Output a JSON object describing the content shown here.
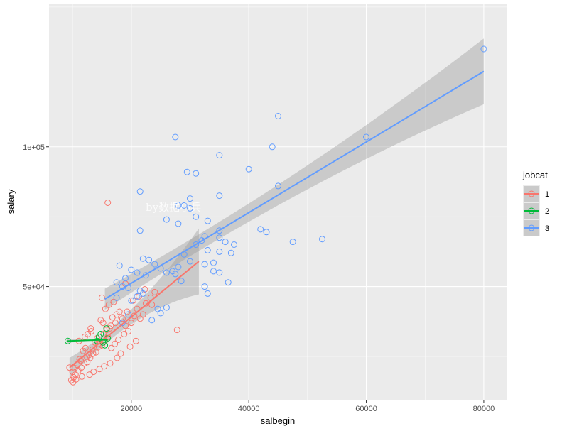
{
  "chart_data": {
    "type": "scatter",
    "title": "",
    "xlabel": "salbegin",
    "ylabel": "salary",
    "xlim": [
      6000,
      84000
    ],
    "ylim": [
      9500,
      151000
    ],
    "x_ticks": [
      20000,
      40000,
      60000,
      80000
    ],
    "x_tick_labels": [
      "20000",
      "40000",
      "60000",
      "80000"
    ],
    "y_ticks": [
      50000,
      100000
    ],
    "y_tick_labels": [
      "5e+04",
      "1e+05"
    ],
    "grid": true,
    "legend": {
      "title": "jobcat",
      "placement": "right",
      "entries": [
        "1",
        "2",
        "3"
      ]
    },
    "watermark": "by数据小兵",
    "series": [
      {
        "name": "1",
        "color": "#F8766D",
        "points": [
          [
            9800,
            16500
          ],
          [
            10200,
            17500
          ],
          [
            10500,
            18500
          ],
          [
            10000,
            19500
          ],
          [
            11000,
            20000
          ],
          [
            11500,
            21000
          ],
          [
            10800,
            22000
          ],
          [
            12000,
            22500
          ],
          [
            12500,
            23000
          ],
          [
            11200,
            24000
          ],
          [
            13000,
            24500
          ],
          [
            12800,
            25500
          ],
          [
            13500,
            26000
          ],
          [
            14000,
            26500
          ],
          [
            11800,
            27000
          ],
          [
            12200,
            28000
          ],
          [
            14500,
            28500
          ],
          [
            15000,
            29000
          ],
          [
            13800,
            30000
          ],
          [
            15500,
            30500
          ],
          [
            14200,
            31500
          ],
          [
            16000,
            32000
          ],
          [
            12600,
            33000
          ],
          [
            13200,
            34000
          ],
          [
            15800,
            34500
          ],
          [
            16500,
            36000
          ],
          [
            15200,
            37000
          ],
          [
            14800,
            38000
          ],
          [
            16800,
            39000
          ],
          [
            17500,
            40000
          ],
          [
            18000,
            41000
          ],
          [
            15600,
            42000
          ],
          [
            16200,
            43500
          ],
          [
            17000,
            44500
          ],
          [
            15000,
            46000
          ],
          [
            18500,
            38500
          ],
          [
            19000,
            36000
          ],
          [
            19500,
            34000
          ],
          [
            20000,
            37000
          ],
          [
            20500,
            39500
          ],
          [
            21000,
            42000
          ],
          [
            22000,
            40000
          ],
          [
            22500,
            44000
          ],
          [
            23500,
            43500
          ],
          [
            21500,
            38500
          ],
          [
            18800,
            33000
          ],
          [
            17800,
            31000
          ],
          [
            17200,
            29500
          ],
          [
            16600,
            28000
          ],
          [
            18200,
            26000
          ],
          [
            17600,
            24500
          ],
          [
            16400,
            22500
          ],
          [
            15400,
            21500
          ],
          [
            14600,
            20500
          ],
          [
            13600,
            19500
          ],
          [
            12900,
            18500
          ],
          [
            11600,
            17800
          ],
          [
            10600,
            16800
          ],
          [
            10100,
            15800
          ],
          [
            10400,
            20800
          ],
          [
            11400,
            23500
          ],
          [
            12400,
            25000
          ],
          [
            13400,
            27500
          ],
          [
            14400,
            29500
          ],
          [
            15300,
            33000
          ],
          [
            16300,
            35000
          ],
          [
            17300,
            37000
          ],
          [
            18300,
            39000
          ],
          [
            19300,
            41000
          ],
          [
            20300,
            45000
          ],
          [
            21300,
            46500
          ],
          [
            22300,
            49000
          ],
          [
            23300,
            46000
          ],
          [
            24000,
            48000
          ],
          [
            19000,
            51000
          ],
          [
            16000,
            80000
          ],
          [
            27800,
            34500
          ],
          [
            9500,
            21000
          ],
          [
            11100,
            30500
          ],
          [
            12100,
            32000
          ],
          [
            13100,
            35000
          ],
          [
            20800,
            30500
          ],
          [
            19800,
            28500
          ]
        ],
        "fit": {
          "x_start": 9500,
          "x_end": 31500,
          "y_start": 21000,
          "y_end": 59000
        }
      },
      {
        "name": "2",
        "color": "#00BA38",
        "points": [
          [
            9200,
            30500
          ],
          [
            14500,
            32000
          ],
          [
            15200,
            30000
          ],
          [
            15800,
            35000
          ],
          [
            14800,
            33000
          ],
          [
            15500,
            29000
          ],
          [
            16000,
            31500
          ],
          [
            14200,
            30500
          ]
        ],
        "fit": {
          "x_start": 9000,
          "x_end": 16000,
          "y_start": 30500,
          "y_end": 31000
        }
      },
      {
        "name": "3",
        "color": "#619CFF",
        "points": [
          [
            80000,
            135000
          ],
          [
            60000,
            103500
          ],
          [
            45000,
            111000
          ],
          [
            44000,
            100000
          ],
          [
            27500,
            103500
          ],
          [
            40000,
            92000
          ],
          [
            35000,
            97000
          ],
          [
            29500,
            91000
          ],
          [
            31000,
            90500
          ],
          [
            45000,
            86000
          ],
          [
            35000,
            82500
          ],
          [
            30000,
            81500
          ],
          [
            21500,
            84000
          ],
          [
            28000,
            79000
          ],
          [
            29000,
            79000
          ],
          [
            30000,
            78000
          ],
          [
            31000,
            75000
          ],
          [
            26000,
            74000
          ],
          [
            33000,
            73500
          ],
          [
            28000,
            72500
          ],
          [
            21500,
            70000
          ],
          [
            35000,
            70000
          ],
          [
            42000,
            70500
          ],
          [
            43000,
            69500
          ],
          [
            32500,
            68000
          ],
          [
            35000,
            67500
          ],
          [
            32000,
            66500
          ],
          [
            36000,
            66000
          ],
          [
            47500,
            66000
          ],
          [
            52500,
            67000
          ],
          [
            31000,
            65000
          ],
          [
            37500,
            65000
          ],
          [
            33000,
            63000
          ],
          [
            35000,
            62500
          ],
          [
            37000,
            62000
          ],
          [
            29000,
            61500
          ],
          [
            30000,
            59000
          ],
          [
            34000,
            58500
          ],
          [
            32500,
            58000
          ],
          [
            28000,
            57000
          ],
          [
            25000,
            56500
          ],
          [
            27000,
            55500
          ],
          [
            22000,
            60000
          ],
          [
            23000,
            59500
          ],
          [
            24000,
            58000
          ],
          [
            18000,
            57500
          ],
          [
            20000,
            56000
          ],
          [
            21000,
            55000
          ],
          [
            22500,
            54000
          ],
          [
            19000,
            53000
          ],
          [
            17500,
            51500
          ],
          [
            18500,
            50000
          ],
          [
            34000,
            55500
          ],
          [
            35000,
            55000
          ],
          [
            26000,
            55000
          ],
          [
            27500,
            54500
          ],
          [
            28500,
            52000
          ],
          [
            19500,
            49500
          ],
          [
            21500,
            48500
          ],
          [
            22000,
            47500
          ],
          [
            21000,
            46500
          ],
          [
            17500,
            46000
          ],
          [
            32500,
            50000
          ],
          [
            33000,
            47500
          ],
          [
            36500,
            51500
          ],
          [
            24500,
            42000
          ],
          [
            26000,
            42500
          ],
          [
            25000,
            40500
          ],
          [
            23500,
            38000
          ],
          [
            19500,
            40000
          ],
          [
            18500,
            37000
          ],
          [
            20000,
            45000
          ]
        ],
        "fit": {
          "x_start": 15500,
          "x_end": 80000,
          "y_start": 45500,
          "y_end": 127000
        }
      }
    ]
  }
}
